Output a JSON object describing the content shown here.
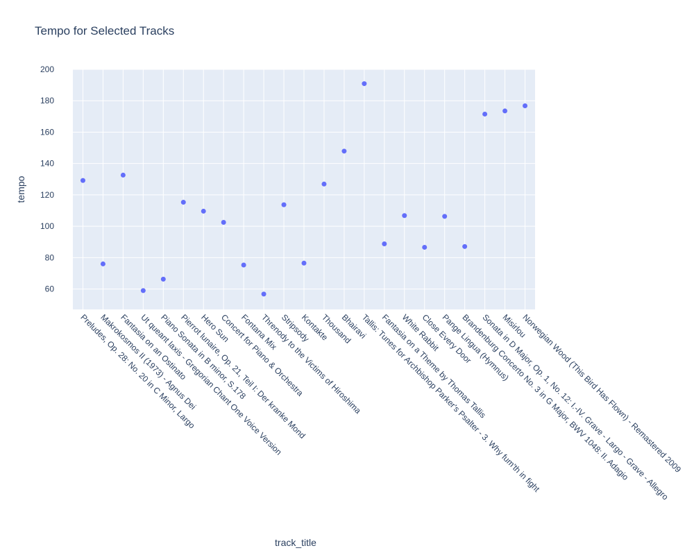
{
  "chart_data": {
    "type": "scatter",
    "title": "Tempo for Selected Tracks",
    "xlabel": "track_title",
    "ylabel": "tempo",
    "ylim": [
      47,
      200
    ],
    "yticks": [
      60,
      80,
      100,
      120,
      140,
      160,
      180,
      200
    ],
    "grid": true,
    "colors": {
      "marker": "#636efa",
      "plot_bg": "#e5ecf6",
      "grid": "#ffffff",
      "text": "#2a3f5f"
    },
    "categories": [
      "Preludes, Op. 28: No. 20 in C Minor, Largo",
      "Makrokosmos II (1973) - Agnus Dei",
      "Fantasia on an Ostinato",
      "Ut queant laxis - Gregorian Chant One Voice Version",
      "Piano Sonata in B minor, S.178",
      "Pierrot lunaire, Op. 21, Teil I: Der kranke Mond",
      "Hero Sun",
      "Concert for Piano & Orchestra",
      "Fontana Mix",
      "Threnody to the Victims of Hiroshima",
      "Stripsody",
      "Kontakte",
      "Thousand",
      "Bhairavi",
      "Tallis: Tunes for Archbishop Parker's Psalter - 3. Why fum'th in fight",
      "Fantasia on a Theme by Thomas Tallis",
      "White Rabbit",
      "Close Every Door",
      "Pange Lingua (Hymnus)",
      "Brandenburg Concerto No. 3 in G Major, BWV 1048: II. Adagio",
      "Sonata in D Major, Op. 1, No. 12: I.-IV. Grave - Largo - Grave - Allegro",
      "Misirlou",
      "Norwegian Wood (This Bird Has Flown) - Remastered 2009"
    ],
    "values": [
      129.2,
      76.0,
      132.6,
      59.0,
      66.3,
      115.3,
      109.6,
      102.5,
      75.3,
      56.8,
      113.7,
      76.5,
      126.9,
      147.9,
      190.9,
      88.8,
      106.8,
      86.6,
      106.3,
      87.1,
      171.5,
      173.5,
      176.8
    ]
  }
}
